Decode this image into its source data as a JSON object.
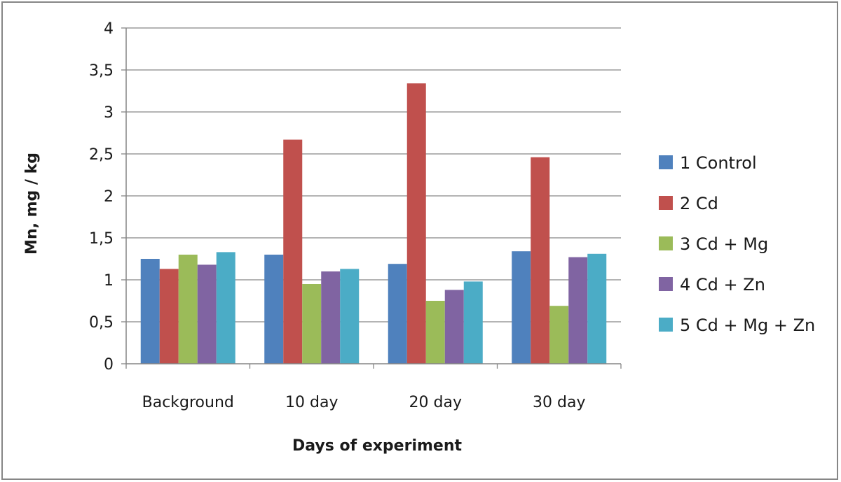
{
  "chart_data": {
    "type": "bar",
    "title": "",
    "xlabel": "Days of experiment",
    "ylabel": "Mn, mg / kg",
    "categories": [
      "Background",
      "10 day",
      "20 day",
      "30 day"
    ],
    "ylim": [
      0,
      4
    ],
    "yticks": [
      0,
      0.5,
      1,
      1.5,
      2,
      2.5,
      3,
      3.5,
      4
    ],
    "ytick_labels": [
      "0",
      "0,5",
      "1",
      "1,5",
      "2",
      "2,5",
      "3",
      "3,5",
      "4"
    ],
    "grid": true,
    "legend_position": "right",
    "series": [
      {
        "name": "1 Control",
        "color": "#4f81bd",
        "values": [
          1.25,
          1.3,
          1.19,
          1.34
        ]
      },
      {
        "name": "2 Cd",
        "color": "#c0504d",
        "values": [
          1.13,
          2.67,
          3.34,
          2.46
        ]
      },
      {
        "name": "3 Cd + Mg",
        "color": "#9bbb59",
        "values": [
          1.3,
          0.95,
          0.75,
          0.69
        ]
      },
      {
        "name": "4 Cd + Zn",
        "color": "#8064a2",
        "values": [
          1.18,
          1.1,
          0.88,
          1.27
        ]
      },
      {
        "name": "5 Cd + Mg + Zn",
        "color": "#4bacc6",
        "values": [
          1.33,
          1.13,
          0.98,
          1.31
        ]
      }
    ]
  }
}
